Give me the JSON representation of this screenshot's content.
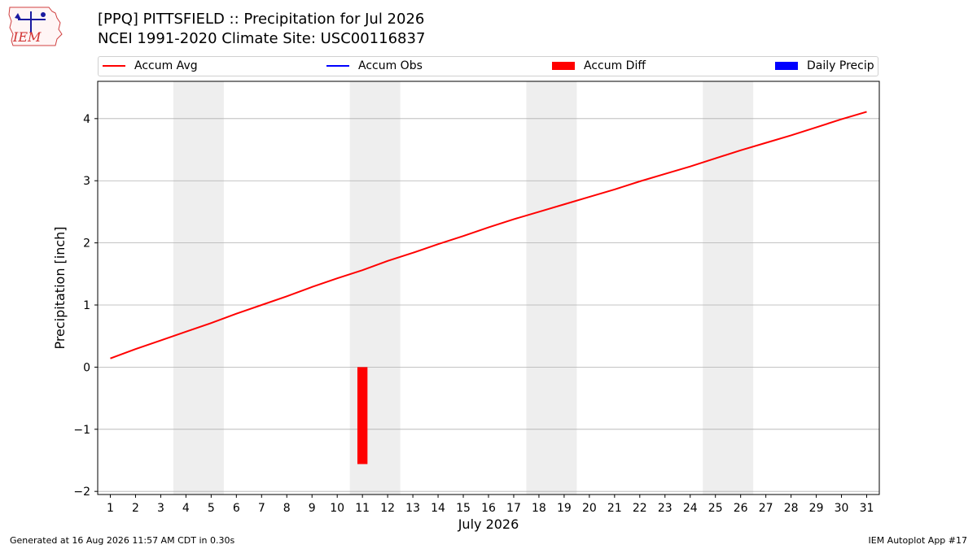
{
  "header": {
    "logo_text": "IEM",
    "title_line1": "[PPQ] PITTSFIELD :: Precipitation for Jul 2026",
    "title_line2": "NCEI 1991-2020 Climate Site: USC00116837"
  },
  "legend": {
    "items": [
      {
        "label": "Accum Avg",
        "kind": "line",
        "color": "#ff0000"
      },
      {
        "label": "Accum Obs",
        "kind": "line",
        "color": "#0000ff"
      },
      {
        "label": "Accum Diff",
        "kind": "patch",
        "color": "#ff0000"
      },
      {
        "label": "Daily Precip",
        "kind": "patch",
        "color": "#0000ff"
      }
    ]
  },
  "chart_data": {
    "type": "line",
    "title": "[PPQ] PITTSFIELD :: Precipitation for Jul 2026",
    "subtitle": "NCEI 1991-2020 Climate Site: USC00116837",
    "xlabel": "July 2026",
    "ylabel": "Precipitation [inch]",
    "xlim": [
      0.5,
      31.5
    ],
    "ylim": [
      -2.05,
      4.6
    ],
    "x": [
      1,
      2,
      3,
      4,
      5,
      6,
      7,
      8,
      9,
      10,
      11,
      12,
      13,
      14,
      15,
      16,
      17,
      18,
      19,
      20,
      21,
      22,
      23,
      24,
      25,
      26,
      27,
      28,
      29,
      30,
      31
    ],
    "xticks": [
      "1",
      "2",
      "3",
      "4",
      "5",
      "6",
      "7",
      "8",
      "9",
      "10",
      "11",
      "12",
      "13",
      "14",
      "15",
      "16",
      "17",
      "18",
      "19",
      "20",
      "21",
      "22",
      "23",
      "24",
      "25",
      "26",
      "27",
      "28",
      "29",
      "30",
      "31"
    ],
    "yticks": [
      -2,
      -1,
      0,
      1,
      2,
      3,
      4
    ],
    "ytick_labels": [
      "−2",
      "−1",
      "0",
      "1",
      "2",
      "3",
      "4"
    ],
    "grid": "y",
    "weekend_shading": [
      [
        3.5,
        5.5
      ],
      [
        10.5,
        12.5
      ],
      [
        17.5,
        19.5
      ],
      [
        24.5,
        26.5
      ]
    ],
    "series": [
      {
        "name": "Accum Avg",
        "kind": "line",
        "color": "#ff0000",
        "values": [
          0.14,
          0.29,
          0.43,
          0.57,
          0.71,
          0.86,
          1.0,
          1.14,
          1.29,
          1.43,
          1.56,
          1.71,
          1.84,
          1.98,
          2.11,
          2.25,
          2.38,
          2.5,
          2.62,
          2.74,
          2.86,
          2.99,
          3.11,
          3.23,
          3.36,
          3.49,
          3.61,
          3.73,
          3.86,
          3.99,
          4.11
        ]
      },
      {
        "name": "Accum Diff",
        "kind": "bar",
        "color": "#ff0000",
        "points": [
          {
            "x": 11,
            "value": -1.56
          }
        ]
      }
    ]
  },
  "footer": {
    "left": "Generated at 16 Aug 2026 11:57 AM CDT in 0.30s",
    "right": "IEM Autoplot App #17"
  }
}
